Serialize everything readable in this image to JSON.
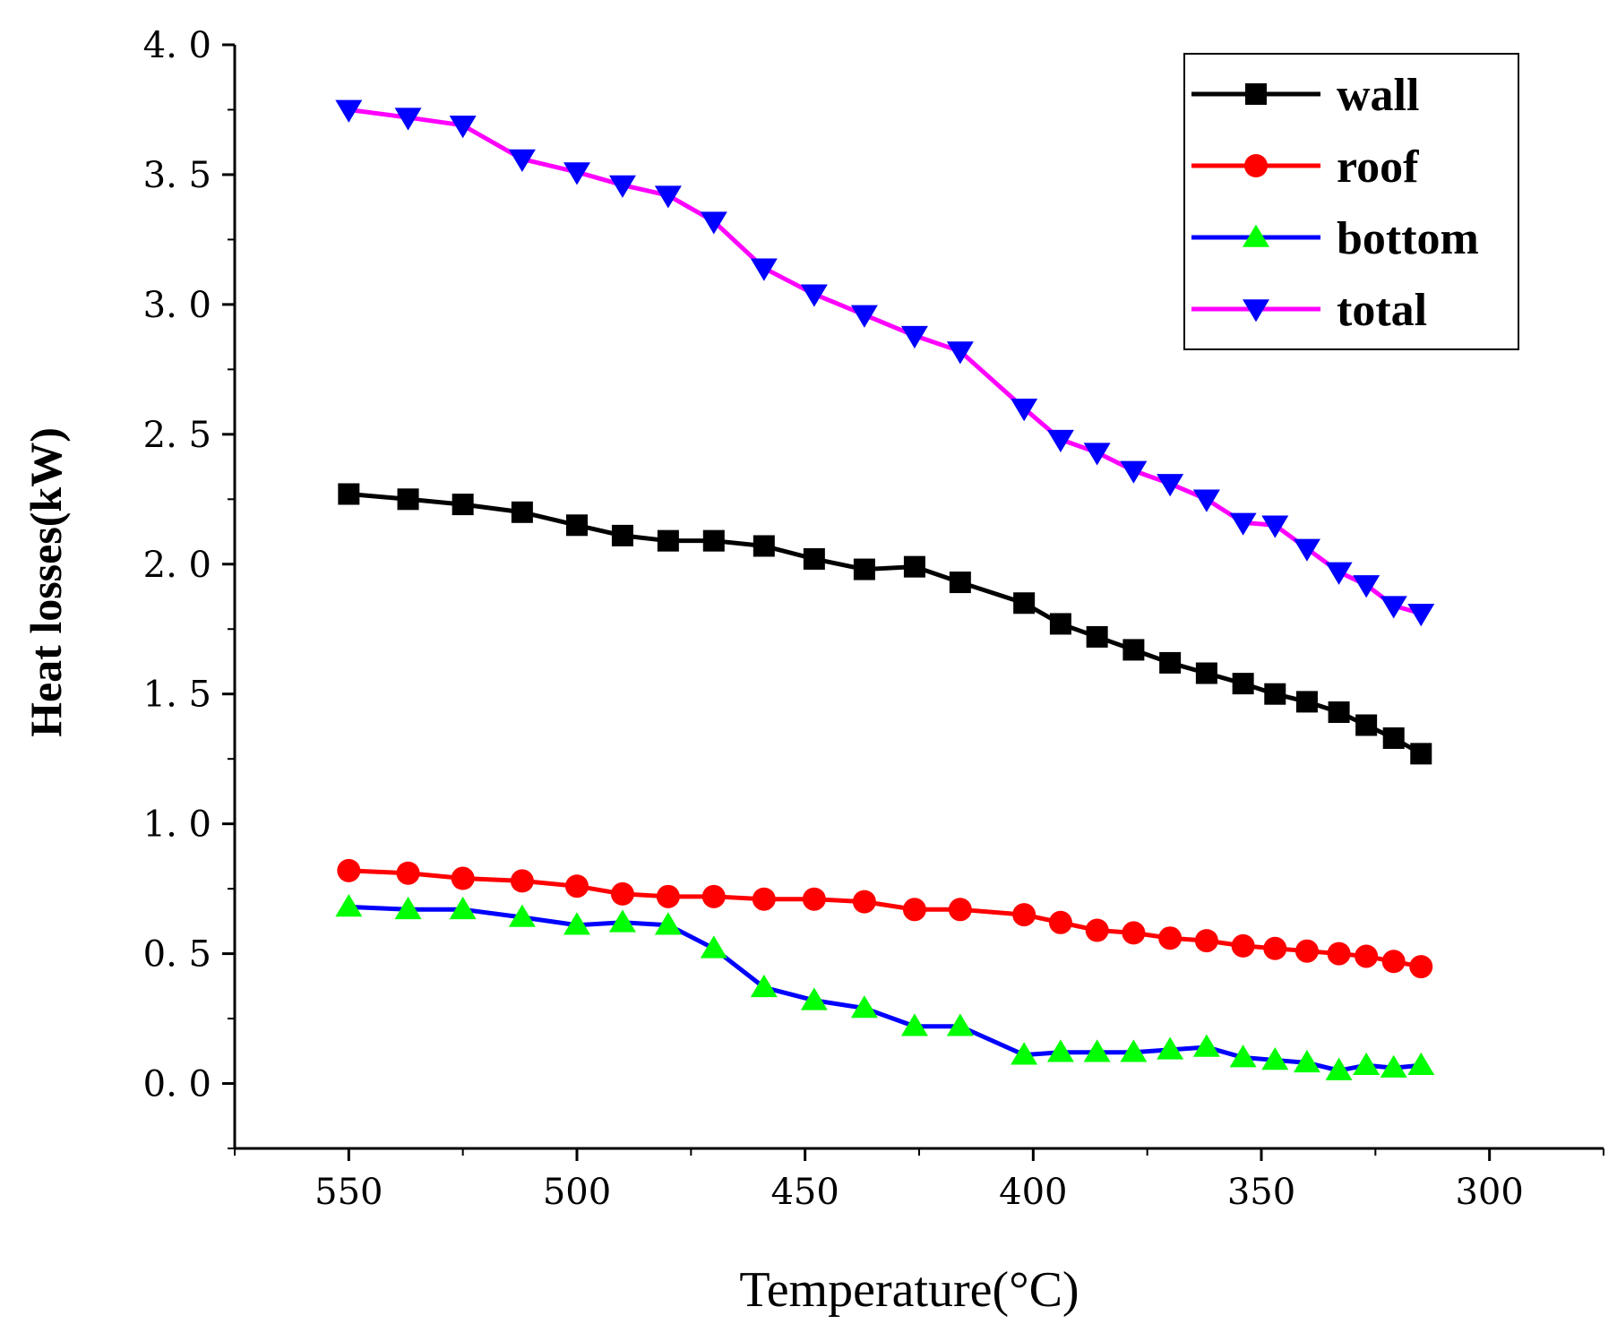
{
  "chart_data": {
    "type": "line",
    "title": "",
    "xlabel": "Temperature(°C)",
    "ylabel": "Heat losses(kW)",
    "xlim": [
      575,
      275
    ],
    "ylim": [
      -0.25,
      4.0
    ],
    "x_reversed": true,
    "xticks": [
      550,
      500,
      450,
      400,
      350,
      300
    ],
    "yticks": [
      0.0,
      0.5,
      1.0,
      1.5,
      2.0,
      2.5,
      3.0,
      3.5,
      4.0
    ],
    "ytick_labels": [
      "0. 0",
      "0. 5",
      "1. 0",
      "1. 5",
      "2. 0",
      "2. 5",
      "3. 0",
      "3. 5",
      "4. 0"
    ],
    "grid": false,
    "legend_position": "top-right",
    "x": [
      550,
      537,
      525,
      512,
      500,
      490,
      480,
      470,
      459,
      448,
      437,
      426,
      416,
      402,
      394,
      386,
      378,
      370,
      362,
      354,
      347,
      340,
      333,
      327,
      321,
      315
    ],
    "series": [
      {
        "name": "wall",
        "color": "#000000",
        "marker": "square",
        "marker_color": "#000000",
        "values": [
          2.27,
          2.25,
          2.23,
          2.2,
          2.15,
          2.11,
          2.09,
          2.09,
          2.07,
          2.02,
          1.98,
          1.99,
          1.93,
          1.85,
          1.77,
          1.72,
          1.67,
          1.62,
          1.58,
          1.54,
          1.5,
          1.47,
          1.43,
          1.38,
          1.33,
          1.27
        ]
      },
      {
        "name": "roof",
        "color": "#ff0000",
        "marker": "circle",
        "marker_color": "#ff0000",
        "values": [
          0.82,
          0.81,
          0.79,
          0.78,
          0.76,
          0.73,
          0.72,
          0.72,
          0.71,
          0.71,
          0.7,
          0.67,
          0.67,
          0.65,
          0.62,
          0.59,
          0.58,
          0.56,
          0.55,
          0.53,
          0.52,
          0.51,
          0.5,
          0.49,
          0.47,
          0.45
        ]
      },
      {
        "name": "bottom",
        "color": "#0000ff",
        "marker": "triangle-up",
        "marker_color": "#00ff00",
        "values": [
          0.68,
          0.67,
          0.67,
          0.64,
          0.61,
          0.62,
          0.61,
          0.52,
          0.37,
          0.32,
          0.29,
          0.22,
          0.22,
          0.11,
          0.12,
          0.12,
          0.12,
          0.13,
          0.14,
          0.1,
          0.09,
          0.08,
          0.05,
          0.07,
          0.06,
          0.07
        ]
      },
      {
        "name": "total",
        "color": "#ff00ff",
        "marker": "triangle-down",
        "marker_color": "#0000ff",
        "values": [
          3.75,
          3.72,
          3.69,
          3.56,
          3.51,
          3.46,
          3.42,
          3.32,
          3.14,
          3.04,
          2.96,
          2.88,
          2.82,
          2.6,
          2.48,
          2.43,
          2.36,
          2.31,
          2.25,
          2.16,
          2.15,
          2.06,
          1.97,
          1.92,
          1.84,
          1.81
        ]
      }
    ]
  }
}
